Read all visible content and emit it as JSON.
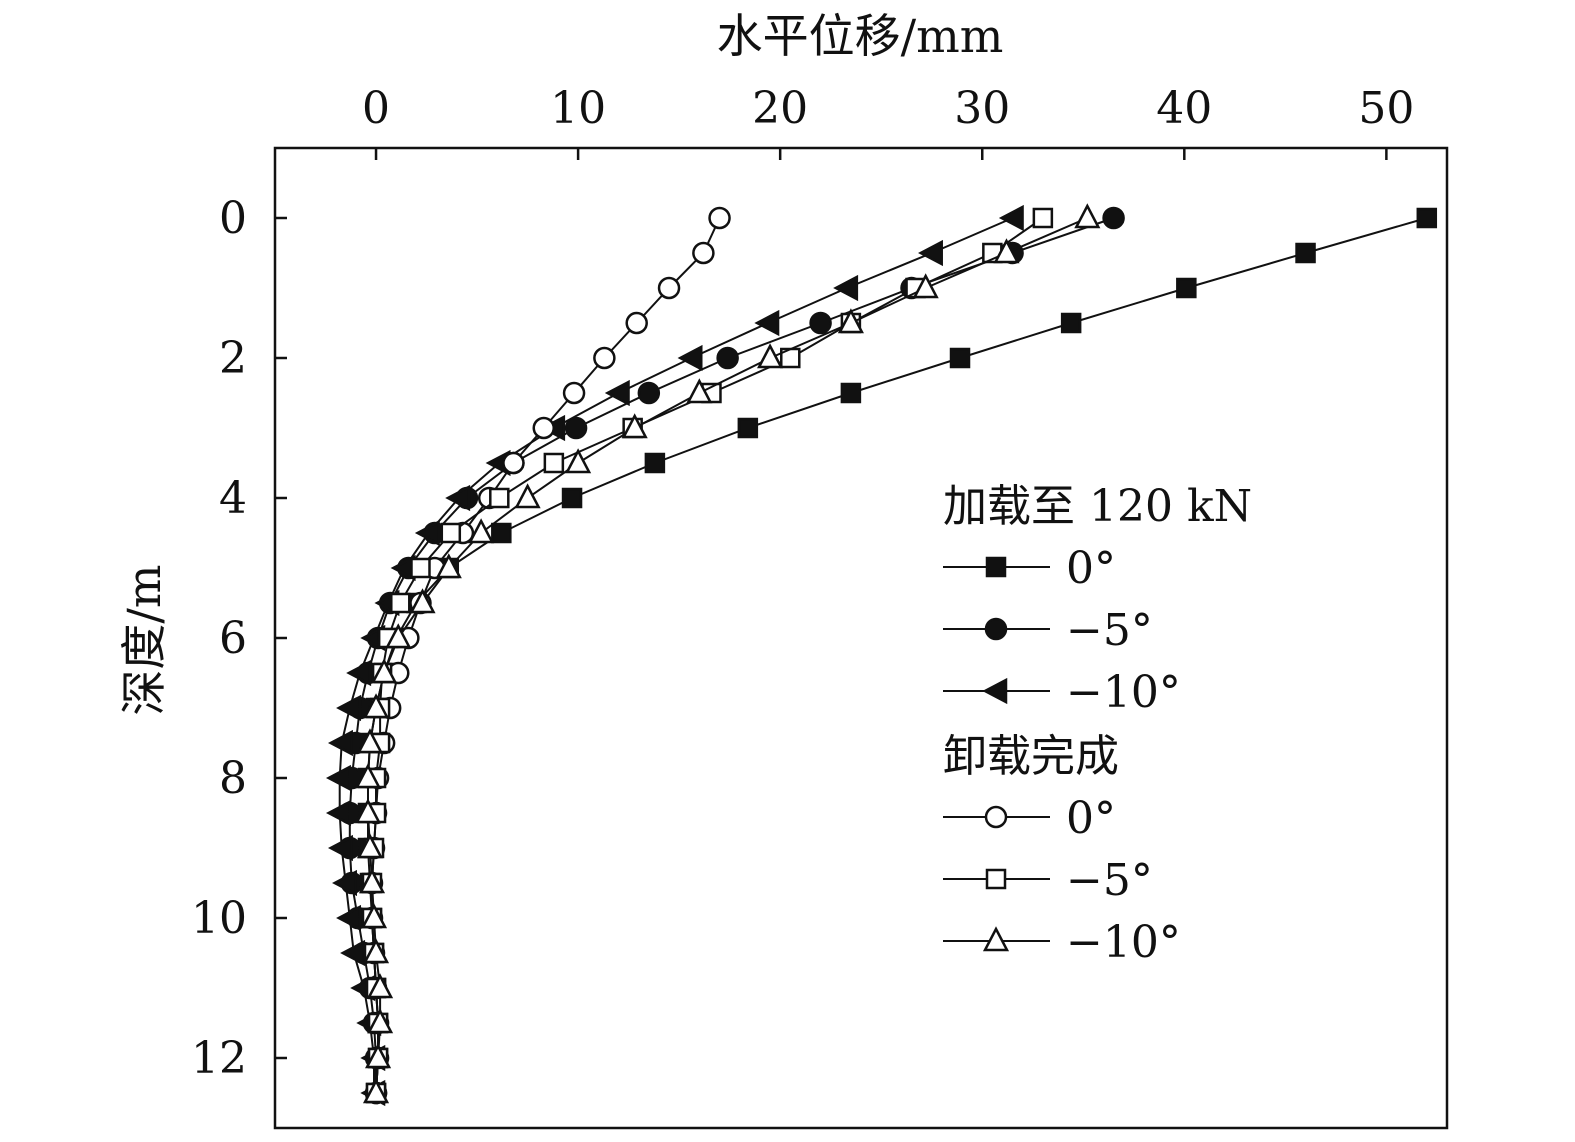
{
  "chart_data": {
    "type": "line",
    "xlabel": "水平位移/mm",
    "ylabel": "深度/m",
    "x_axis_position": "top",
    "y_axis_inverted": true,
    "xlim": [
      -5,
      53
    ],
    "ylim": [
      -1,
      13
    ],
    "x_ticks": [
      0,
      10,
      20,
      30,
      40,
      50
    ],
    "y_ticks": [
      0,
      2,
      4,
      6,
      8,
      10,
      12
    ],
    "legend_position": "right",
    "legend_groups": [
      "加载至 120 kN",
      "卸载完成"
    ],
    "series": [
      {
        "name": "0°",
        "group": 0,
        "marker": "square",
        "filled": true,
        "depth": [
          0,
          0.5,
          1,
          1.5,
          2,
          2.5,
          3,
          3.5,
          4,
          4.5,
          5,
          5.5,
          6,
          6.5,
          7,
          7.5,
          8,
          8.5,
          9,
          9.5,
          10,
          10.5,
          11,
          11.5,
          12,
          12.5
        ],
        "x": [
          52,
          46,
          40.1,
          34.4,
          28.9,
          23.5,
          18.4,
          13.8,
          9.7,
          6.2,
          3.6,
          2.0,
          1.0,
          0.4,
          0,
          -0.3,
          -0.4,
          -0.4,
          -0.4,
          -0.3,
          -0.2,
          -0.1,
          0,
          0.1,
          0.1,
          0
        ]
      },
      {
        "name": "−5°",
        "group": 0,
        "marker": "circle",
        "filled": true,
        "depth": [
          0,
          0.5,
          1,
          1.5,
          2,
          2.5,
          3,
          3.5,
          4,
          4.5,
          5,
          5.5,
          6,
          6.5,
          7,
          7.5,
          8,
          8.5,
          9,
          9.5,
          10,
          10.5,
          11,
          11.5,
          12,
          12.5
        ],
        "x": [
          36.5,
          31.5,
          26.5,
          22,
          17.4,
          13.5,
          9.9,
          6.8,
          4.5,
          2.9,
          1.6,
          0.7,
          0.1,
          -0.4,
          -0.8,
          -1.0,
          -1.2,
          -1.3,
          -1.3,
          -1.2,
          -0.9,
          -0.6,
          -0.3,
          -0.1,
          0,
          0
        ]
      },
      {
        "name": "−10°",
        "group": 0,
        "marker": "triangle-left",
        "filled": true,
        "depth": [
          0,
          0.5,
          1,
          1.5,
          2,
          2.5,
          3,
          3.5,
          4,
          4.5,
          5,
          5.5,
          6,
          6.5,
          7,
          7.5,
          8,
          8.5,
          9,
          9.5,
          10,
          10.5,
          11,
          11.5,
          12,
          12.5
        ],
        "x": [
          31.5,
          27.5,
          23.3,
          19.4,
          15.6,
          12,
          8.8,
          6.1,
          4.1,
          2.6,
          1.4,
          0.6,
          -0.1,
          -0.8,
          -1.3,
          -1.7,
          -1.8,
          -1.8,
          -1.7,
          -1.5,
          -1.3,
          -1.1,
          -0.6,
          -0.3,
          -0.1,
          -0.1
        ]
      },
      {
        "name": "0°",
        "group": 1,
        "marker": "circle",
        "filled": false,
        "depth": [
          0,
          0.5,
          1,
          1.5,
          2,
          2.5,
          3,
          3.5,
          4,
          4.5,
          5,
          5.5,
          6,
          6.5,
          7,
          7.5,
          8,
          8.5,
          9,
          9.5,
          10,
          10.5,
          11,
          11.5,
          12,
          12.5
        ],
        "x": [
          17,
          16.2,
          14.5,
          12.9,
          11.3,
          9.8,
          8.3,
          6.8,
          5.6,
          4.3,
          2.9,
          2.2,
          1.6,
          1.1,
          0.7,
          0.4,
          0.1,
          0,
          -0.1,
          -0.2,
          -0.2,
          -0.1,
          0,
          0.1,
          0.1,
          0
        ]
      },
      {
        "name": "−5°",
        "group": 1,
        "marker": "square",
        "filled": false,
        "depth": [
          0,
          0.5,
          1,
          1.5,
          2,
          2.5,
          3,
          3.5,
          4,
          4.5,
          5,
          5.5,
          6,
          6.5,
          7,
          7.5,
          8,
          8.5,
          9,
          9.5,
          10,
          10.5,
          11,
          11.5,
          12,
          12.5
        ],
        "x": [
          33,
          30.5,
          26.7,
          23.5,
          20.5,
          16.6,
          12.7,
          8.8,
          6.1,
          3.7,
          2.2,
          1.2,
          0.6,
          0.3,
          0.2,
          0.2,
          0,
          0,
          -0.1,
          -0.2,
          -0.2,
          -0.1,
          0,
          0.1,
          0.1,
          0
        ]
      },
      {
        "name": "−10°",
        "group": 1,
        "marker": "triangle-up",
        "filled": false,
        "depth": [
          0,
          0.5,
          1,
          1.5,
          2,
          2.5,
          3,
          3.5,
          4,
          4.5,
          5,
          5.5,
          6,
          6.5,
          7,
          7.5,
          8,
          8.5,
          9,
          9.5,
          10,
          10.5,
          11,
          11.5,
          12,
          12.5
        ],
        "x": [
          35.2,
          31.2,
          27.2,
          23.5,
          19.5,
          16,
          12.8,
          10,
          7.5,
          5.2,
          3.6,
          2.3,
          1.1,
          0.4,
          0,
          -0.3,
          -0.4,
          -0.4,
          -0.3,
          -0.2,
          -0.1,
          0,
          0.2,
          0.2,
          0.1,
          0
        ]
      }
    ]
  }
}
